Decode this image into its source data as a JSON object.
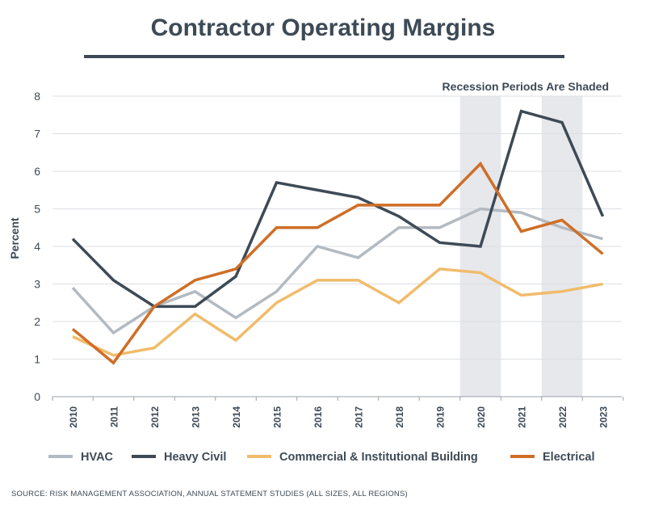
{
  "title": "Contractor Operating Margins",
  "source": "SOURCE: RISK MANAGEMENT ASSOCIATION, ANNUAL STATEMENT STUDIES (ALL SIZES, ALL REGIONS)",
  "chart_data": {
    "type": "line",
    "title": "Contractor Operating Margins",
    "xlabel": "",
    "ylabel": "Percent",
    "ylim": [
      0,
      8
    ],
    "yticks": [
      0,
      1,
      2,
      3,
      4,
      5,
      6,
      7,
      8
    ],
    "grid": true,
    "legend_position": "bottom",
    "annotation": "Recession Periods Are Shaded",
    "shaded_periods": [
      {
        "start": 2019.5,
        "end": 2020.5
      },
      {
        "start": 2021.5,
        "end": 2022.5
      }
    ],
    "categories": [
      "2010",
      "2011",
      "2012",
      "2013",
      "2014",
      "2015",
      "2016",
      "2017",
      "2018",
      "2019",
      "2020",
      "2021",
      "2022",
      "2023"
    ],
    "series": [
      {
        "name": "HVAC",
        "color": "#b3bac1",
        "values": [
          2.9,
          1.7,
          2.4,
          2.8,
          2.1,
          2.8,
          4.0,
          3.7,
          4.5,
          4.5,
          5.0,
          4.9,
          4.5,
          4.2
        ]
      },
      {
        "name": "Heavy Civil",
        "color": "#3d4a56",
        "values": [
          4.2,
          3.1,
          2.4,
          2.4,
          3.2,
          5.7,
          5.5,
          5.3,
          4.8,
          4.1,
          4.0,
          7.6,
          7.3,
          4.8
        ]
      },
      {
        "name": "Commercial & Institutional Building",
        "color": "#f0bc6b",
        "values": [
          1.6,
          1.1,
          1.3,
          2.2,
          1.5,
          2.5,
          3.1,
          3.1,
          2.5,
          3.4,
          3.3,
          2.7,
          2.8,
          3.0
        ]
      },
      {
        "name": "Electrical",
        "color": "#cf6e27",
        "values": [
          1.8,
          0.9,
          2.4,
          3.1,
          3.4,
          4.5,
          4.5,
          5.1,
          5.1,
          5.1,
          6.2,
          4.4,
          4.7,
          3.8
        ]
      }
    ]
  }
}
